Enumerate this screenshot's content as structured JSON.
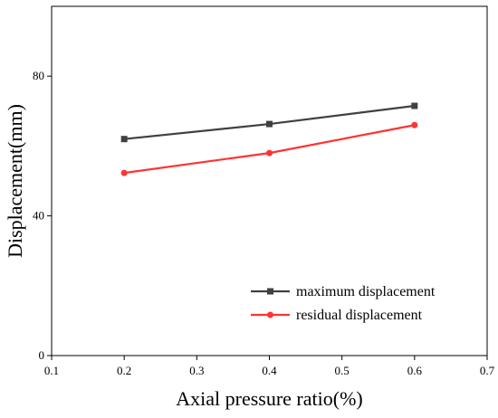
{
  "chart_data": {
    "type": "line",
    "xlabel": "Axial pressure ratio(%)",
    "ylabel": "Displacement(mm)",
    "xlim": [
      0.1,
      0.7
    ],
    "ylim": [
      0,
      100
    ],
    "x_ticks": [
      "0.1",
      "0.2",
      "0.3",
      "0.4",
      "0.5",
      "0.6",
      "0.7"
    ],
    "x_tick_values": [
      0.1,
      0.2,
      0.3,
      0.4,
      0.5,
      0.6,
      0.7
    ],
    "y_ticks": [
      "0",
      "40",
      "80"
    ],
    "y_tick_values": [
      0,
      40,
      80
    ],
    "legend_position": "bottom-right",
    "grid": false,
    "series": [
      {
        "name": "maximum displacement",
        "color": "#404040",
        "marker": "square",
        "x": [
          0.2,
          0.4,
          0.6
        ],
        "y": [
          62,
          66.3,
          71.5
        ]
      },
      {
        "name": "residual displacement",
        "color": "#ff3333",
        "marker": "circle",
        "x": [
          0.2,
          0.4,
          0.6
        ],
        "y": [
          52.3,
          58,
          66
        ]
      }
    ]
  }
}
